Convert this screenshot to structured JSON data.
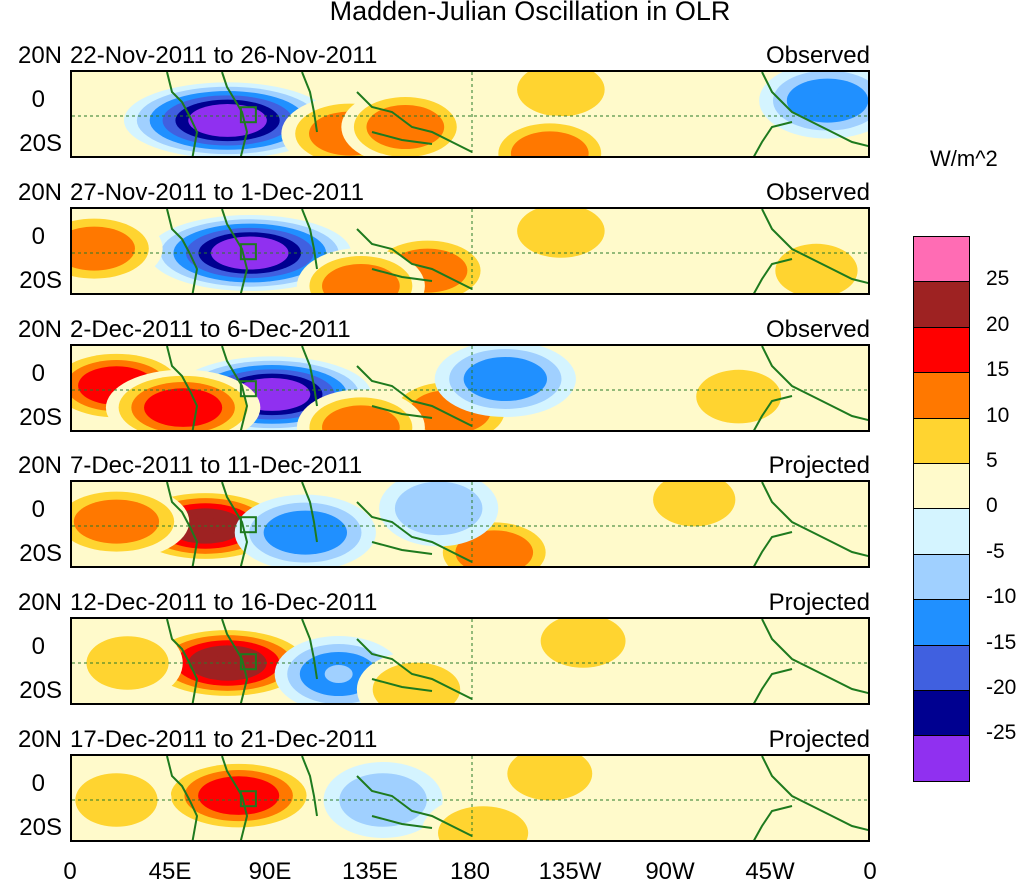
{
  "chart_data": {
    "type": "heatmap",
    "title": "Madden-Julian Oscillation in OLR",
    "units": "W/m^2",
    "x_ticks": [
      "0",
      "45E",
      "90E",
      "135E",
      "180",
      "135W",
      "90W",
      "45W",
      "0"
    ],
    "y_ticks": [
      "20N",
      "0",
      "20S"
    ],
    "xlim_deg_east": [
      0,
      360
    ],
    "ylim_deg_lat": [
      -20,
      20
    ],
    "colorbar": {
      "levels": [
        "25",
        "20",
        "15",
        "10",
        "5",
        "0",
        "-5",
        "-10",
        "-15",
        "-20",
        "-25"
      ],
      "colors": [
        "#ff6cb4",
        "#9e2222",
        "#ff0000",
        "#ff7800",
        "#ffd430",
        "#fffacb",
        "#d4f4ff",
        "#a0d0ff",
        "#2090ff",
        "#4060e0",
        "#000090",
        "#9030f0"
      ]
    },
    "panels": [
      {
        "period": "22-Nov-2011 to 26-Nov-2011",
        "type": "Observed",
        "anomalies": [
          {
            "lon": 70,
            "lat": -2,
            "value": -28
          },
          {
            "lon": 125,
            "lat": -8,
            "value": 12
          },
          {
            "lon": 150,
            "lat": -5,
            "value": 10
          },
          {
            "lon": 220,
            "lat": 12,
            "value": 8
          },
          {
            "lon": 215,
            "lat": -17,
            "value": 10
          },
          {
            "lon": 340,
            "lat": 7,
            "value": -12
          }
        ]
      },
      {
        "period": "27-Nov-2011 to 1-Dec-2011",
        "type": "Observed",
        "anomalies": [
          {
            "lon": 80,
            "lat": 0,
            "value": -27
          },
          {
            "lon": 10,
            "lat": 2,
            "value": 12
          },
          {
            "lon": 160,
            "lat": -8,
            "value": 11
          },
          {
            "lon": 130,
            "lat": -15,
            "value": 10
          },
          {
            "lon": 220,
            "lat": 10,
            "value": 8
          },
          {
            "lon": 335,
            "lat": -8,
            "value": 6
          }
        ]
      },
      {
        "period": "2-Dec-2011 to 6-Dec-2011",
        "type": "Observed",
        "anomalies": [
          {
            "lon": 90,
            "lat": -2,
            "value": -26
          },
          {
            "lon": 20,
            "lat": 2,
            "value": 15
          },
          {
            "lon": 50,
            "lat": -8,
            "value": 16
          },
          {
            "lon": 170,
            "lat": -10,
            "value": 12
          },
          {
            "lon": 130,
            "lat": -17,
            "value": 10
          },
          {
            "lon": 195,
            "lat": 5,
            "value": -13
          },
          {
            "lon": 300,
            "lat": -3,
            "value": 7
          }
        ]
      },
      {
        "period": "7-Dec-2011 to 11-Dec-2011",
        "type": "Projected",
        "anomalies": [
          {
            "lon": 60,
            "lat": 0,
            "value": 20
          },
          {
            "lon": 20,
            "lat": 2,
            "value": 14
          },
          {
            "lon": 105,
            "lat": -3,
            "value": -13
          },
          {
            "lon": 190,
            "lat": -12,
            "value": 10
          },
          {
            "lon": 165,
            "lat": 8,
            "value": -8
          },
          {
            "lon": 280,
            "lat": 12,
            "value": 6
          }
        ]
      },
      {
        "period": "12-Dec-2011 to 16-Dec-2011",
        "type": "Projected",
        "anomalies": [
          {
            "lon": 70,
            "lat": 0,
            "value": 22
          },
          {
            "lon": 120,
            "lat": -5,
            "value": -10
          },
          {
            "lon": 155,
            "lat": -12,
            "value": 8
          },
          {
            "lon": 230,
            "lat": 10,
            "value": 7
          },
          {
            "lon": 25,
            "lat": 0,
            "value": 6
          }
        ]
      },
      {
        "period": "17-Dec-2011 to 21-Dec-2011",
        "type": "Projected",
        "anomalies": [
          {
            "lon": 75,
            "lat": 2,
            "value": 18
          },
          {
            "lon": 140,
            "lat": 0,
            "value": -8
          },
          {
            "lon": 185,
            "lat": -15,
            "value": 9
          },
          {
            "lon": 215,
            "lat": 12,
            "value": 7
          },
          {
            "lon": 20,
            "lat": 0,
            "value": 6
          }
        ]
      }
    ]
  }
}
